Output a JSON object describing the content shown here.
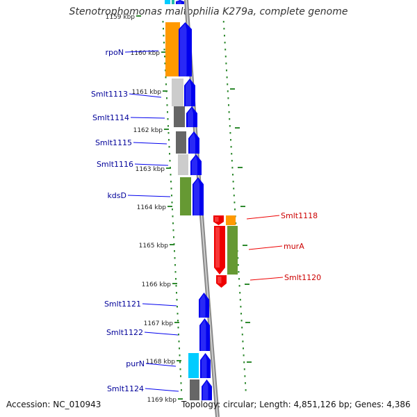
{
  "title": "Stenotrophomonas maltophilia K279a, complete genome",
  "footer": {
    "accession": "Accession: NC_010943",
    "topology": "Topology: circular; Length: 4,851,126 bp; Genes: 4,386"
  },
  "ruler": {
    "labels": [
      "1159 kbp",
      "1160 kbp",
      "1161 kbp",
      "1162 kbp",
      "1163 kbp",
      "1164 kbp",
      "1165 kbp",
      "1166 kbp",
      "1167 kbp",
      "1168 kbp",
      "1169 kbp"
    ]
  },
  "genes_forward": [
    {
      "label": "rpoN",
      "color": "#0000ee"
    },
    {
      "label": "Smlt1113",
      "color": "#0000ee"
    },
    {
      "label": "Smlt1114",
      "color": "#0000ee"
    },
    {
      "label": "Smlt1115",
      "color": "#0000ee"
    },
    {
      "label": "Smlt1116",
      "color": "#0000ee"
    },
    {
      "label": "kdsD",
      "color": "#0000ee"
    },
    {
      "label": "Smlt1121",
      "color": "#0000ee"
    },
    {
      "label": "Smlt1122",
      "color": "#0000ee"
    },
    {
      "label": "purN",
      "color": "#0000ee"
    },
    {
      "label": "Smlt1124",
      "color": "#0000ee"
    }
  ],
  "genes_reverse": [
    {
      "label": "Smlt1118",
      "color": "#ee0000"
    },
    {
      "label": "murA",
      "color": "#ee0000"
    },
    {
      "label": "Smlt1120",
      "color": "#ee0000"
    }
  ],
  "cog_colors": {
    "orange": "#ff9900",
    "light_gray": "#cccccc",
    "dark_gray": "#666666",
    "green": "#669933",
    "cyan": "#00ccff"
  }
}
